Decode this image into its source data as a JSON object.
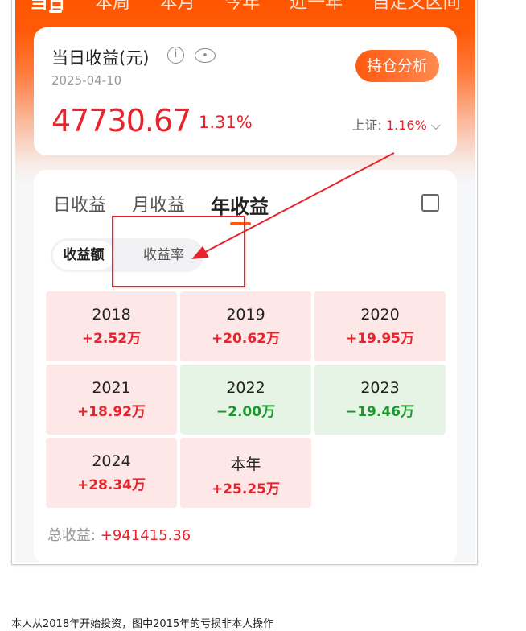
{
  "top_tabs": [
    "当日",
    "本周",
    "本月",
    "今年",
    "近一年",
    "自定义区间"
  ],
  "summary": {
    "title": "当日收益(元)",
    "date": "2025-04-10",
    "button": "持仓分析",
    "amount": "47730.67",
    "percent": "1.31%",
    "index_label": "上证:",
    "index_value": "1.16%",
    "icons": [
      "info-icon",
      "eye-icon",
      "chevron-down-icon"
    ]
  },
  "tabs": [
    "日收益",
    "月收益",
    "年收益"
  ],
  "active_tab": "年收益",
  "toggle": {
    "amount": "收益额",
    "rate": "收益率"
  },
  "years": [
    {
      "year": "2018",
      "value": "+2.52万",
      "trend": "up"
    },
    {
      "year": "2019",
      "value": "+20.62万",
      "trend": "up"
    },
    {
      "year": "2020",
      "value": "+19.95万",
      "trend": "up"
    },
    {
      "year": "2021",
      "value": "+18.92万",
      "trend": "up"
    },
    {
      "year": "2022",
      "value": "−2.00万",
      "trend": "down"
    },
    {
      "year": "2023",
      "value": "−19.46万",
      "trend": "down"
    },
    {
      "year": "2024",
      "value": "+28.34万",
      "trend": "up"
    },
    {
      "year": "本年",
      "value": "+25.25万",
      "trend": "up"
    }
  ],
  "total": {
    "label": "总收益:",
    "value": "+941415.36"
  },
  "caption": "本人从2018年开始投资，图中2015年的亏损非本人操作",
  "colors": {
    "brand": "#ff5500",
    "gain": "#e8232b",
    "loss": "#1a9a2a",
    "annotation": "#e8232b"
  }
}
